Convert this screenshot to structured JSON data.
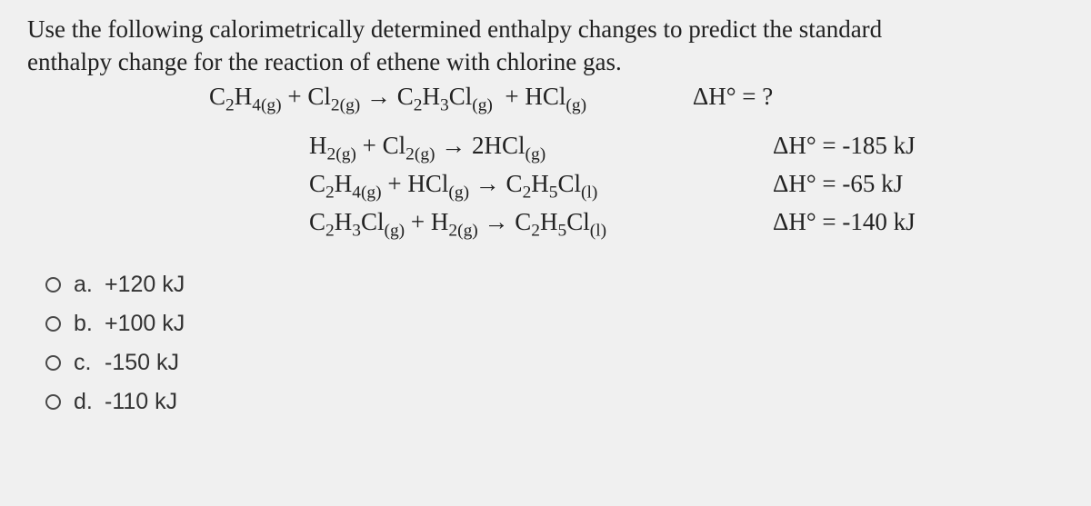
{
  "question": {
    "prompt_line1": "Use the following calorimetrically determined enthalpy changes to predict the standard",
    "prompt_line2": "enthalpy change for the reaction of ethene with chlorine gas.",
    "target_reaction_html": "C<sub>2</sub>H<sub>4(g)</sub> + Cl<sub>2(g)</sub> → C<sub>2</sub>H<sub>3</sub>Cl<sub>(g)</sub>&nbsp;&nbsp;+ HCl<sub>(g)</sub>",
    "target_dH_html": "ΔH° = ?",
    "given": [
      {
        "eq_html": "H<sub>2(g)</sub> + Cl<sub>2(g)</sub> → 2HCl<sub>(g)</sub>",
        "dH_html": "ΔH° = -185 kJ"
      },
      {
        "eq_html": "C<sub>2</sub>H<sub>4(g)</sub> + HCl<sub>(g)</sub> → C<sub>2</sub>H<sub>5</sub>Cl<sub>(l)</sub>",
        "dH_html": "ΔH° = -65 kJ"
      },
      {
        "eq_html": "C<sub>2</sub>H<sub>3</sub>Cl<sub>(g)</sub> + H<sub>2(g)</sub> → C<sub>2</sub>H<sub>5</sub>Cl<sub>(l)</sub>",
        "dH_html": "ΔH° = -140 kJ"
      }
    ]
  },
  "options": [
    {
      "letter": "a.",
      "text": "+120 kJ"
    },
    {
      "letter": "b.",
      "text": "+100 kJ"
    },
    {
      "letter": "c.",
      "text": "-150 kJ"
    },
    {
      "letter": "d.",
      "text": "-110 kJ"
    }
  ],
  "colors": {
    "sheet_bg": "#f0f0f0",
    "text": "#222222",
    "radio_border": "#4a4a4a"
  },
  "typography": {
    "question_font": "Times New Roman",
    "question_size_pt": 20,
    "option_font": "Arial",
    "option_size_pt": 18
  }
}
